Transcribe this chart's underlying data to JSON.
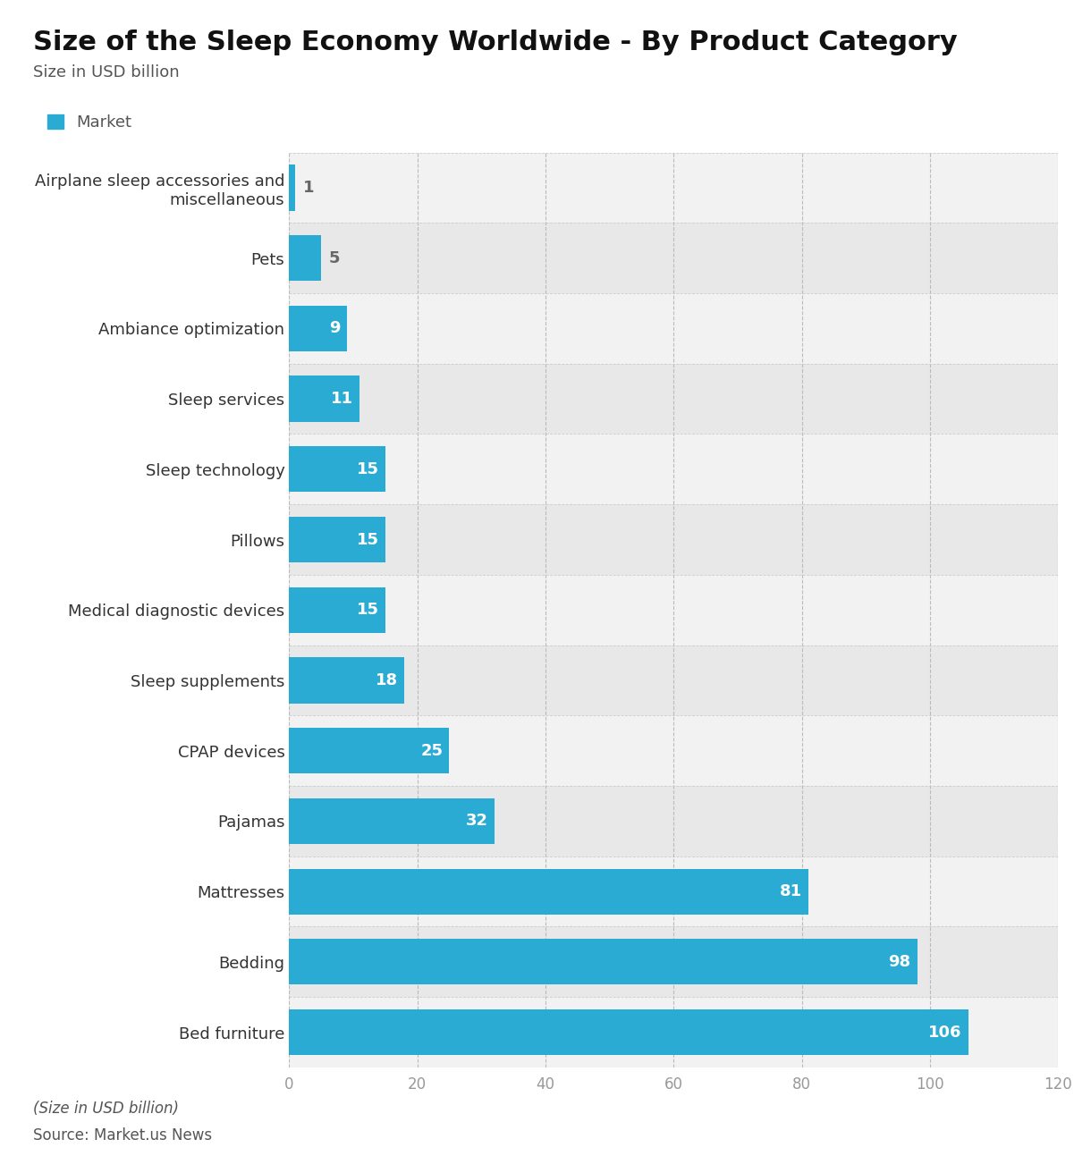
{
  "title": "Size of the Sleep Economy Worldwide - By Product Category",
  "subtitle": "Size in USD billion",
  "legend_label": "Market",
  "footer_line1": "(Size in USD billion)",
  "footer_line2": "Source: Market.us News",
  "categories": [
    "Airplane sleep accessories and\nmiscellaneous",
    "Pets",
    "Ambiance optimization",
    "Sleep services",
    "Sleep technology",
    "Pillows",
    "Medical diagnostic devices",
    "Sleep supplements",
    "CPAP devices",
    "Pajamas",
    "Mattresses",
    "Bedding",
    "Bed furniture"
  ],
  "values": [
    1,
    5,
    9,
    11,
    15,
    15,
    15,
    18,
    25,
    32,
    81,
    98,
    106
  ],
  "bar_color": "#29ABD4",
  "row_color_odd": "#f2f2f2",
  "row_color_even": "#e8e8e8",
  "figure_bg_color": "#ffffff",
  "bar_label_color_inside": "#ffffff",
  "bar_label_color_outside": "#666666",
  "xlim": [
    0,
    120
  ],
  "xticks": [
    0,
    20,
    40,
    60,
    80,
    100,
    120
  ],
  "title_fontsize": 22,
  "subtitle_fontsize": 13,
  "legend_fontsize": 13,
  "tick_fontsize": 12,
  "bar_label_fontsize": 13,
  "ylabel_fontsize": 13,
  "footer_fontsize": 12
}
